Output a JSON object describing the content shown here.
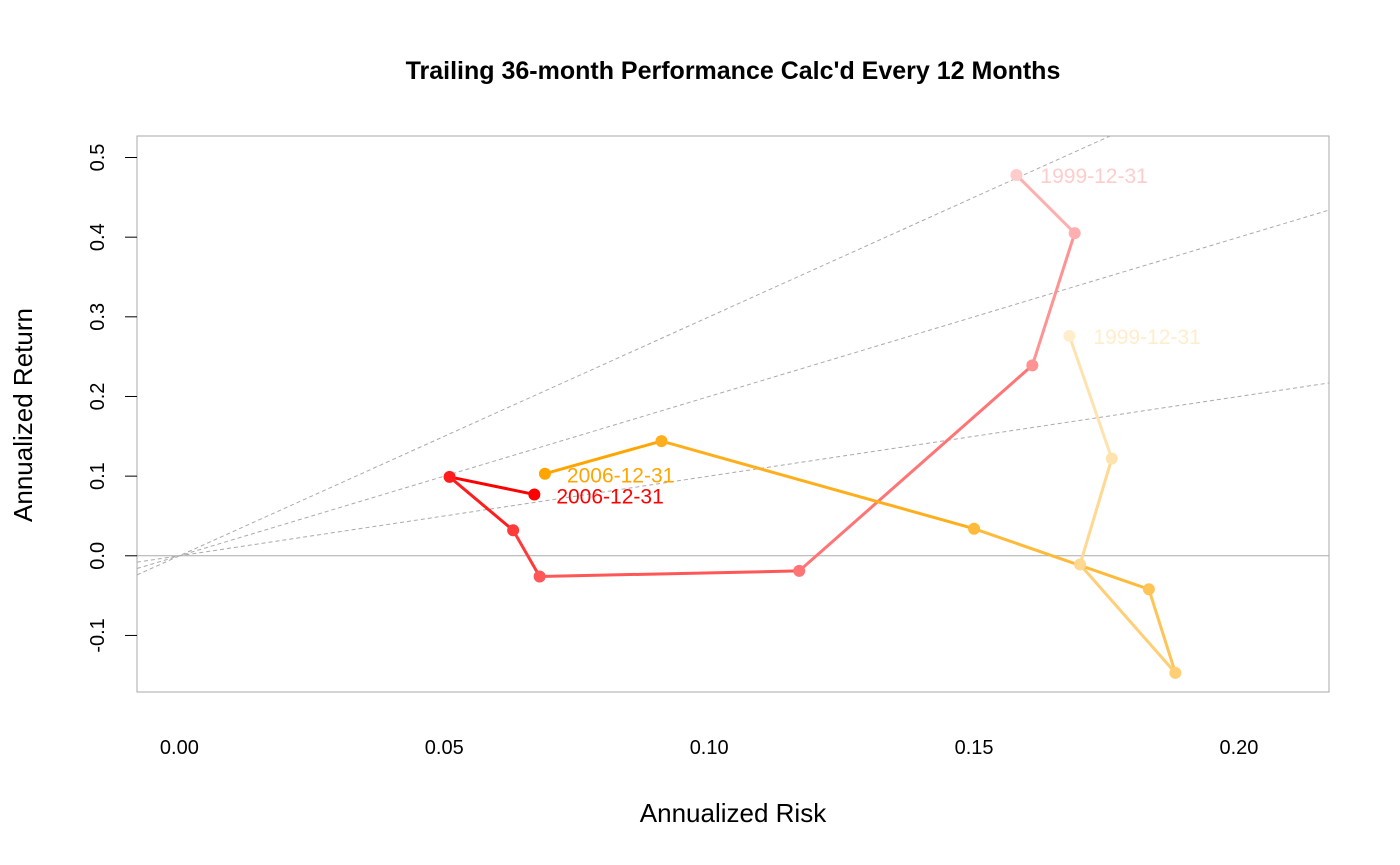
{
  "chart_data": {
    "type": "line",
    "title": "Trailing 36-month Performance Calc'd Every 12 Months",
    "xlabel": "Annualized Risk",
    "ylabel": "Annualized Return",
    "xlim": [
      -0.008,
      0.217
    ],
    "ylim": [
      -0.171,
      0.527
    ],
    "x_ticks": [
      0.0,
      0.05,
      0.1,
      0.15,
      0.2
    ],
    "x_tick_labels": [
      "0.00",
      "0.05",
      "0.10",
      "0.15",
      "0.20"
    ],
    "y_ticks": [
      -0.1,
      0.0,
      0.1,
      0.2,
      0.3,
      0.4,
      0.5
    ],
    "y_tick_labels": [
      "-0.1",
      "0.0",
      "0.1",
      "0.2",
      "0.3",
      "0.4",
      "0.5"
    ],
    "zero_line": 0.0,
    "sharpe_lines": [
      {
        "slope": 1
      },
      {
        "slope": 2
      },
      {
        "slope": 3
      }
    ],
    "grid": false,
    "series": [
      {
        "color": "#FF0000",
        "start_label": "1999-12-31",
        "end_label": "2006-12-31",
        "points": [
          {
            "x": 0.158,
            "y": 0.478
          },
          {
            "x": 0.169,
            "y": 0.405
          },
          {
            "x": 0.161,
            "y": 0.239
          },
          {
            "x": 0.117,
            "y": -0.019
          },
          {
            "x": 0.068,
            "y": -0.026
          },
          {
            "x": 0.063,
            "y": 0.032
          },
          {
            "x": 0.051,
            "y": 0.099
          },
          {
            "x": 0.067,
            "y": 0.077
          }
        ]
      },
      {
        "color": "#FFA500",
        "start_label": "1999-12-31",
        "end_label": "2006-12-31",
        "points": [
          {
            "x": 0.168,
            "y": 0.276
          },
          {
            "x": 0.176,
            "y": 0.122
          },
          {
            "x": 0.17,
            "y": -0.011
          },
          {
            "x": 0.188,
            "y": -0.147
          },
          {
            "x": 0.183,
            "y": -0.042
          },
          {
            "x": 0.15,
            "y": 0.034
          },
          {
            "x": 0.091,
            "y": 0.144
          },
          {
            "x": 0.069,
            "y": 0.103
          }
        ]
      }
    ]
  }
}
